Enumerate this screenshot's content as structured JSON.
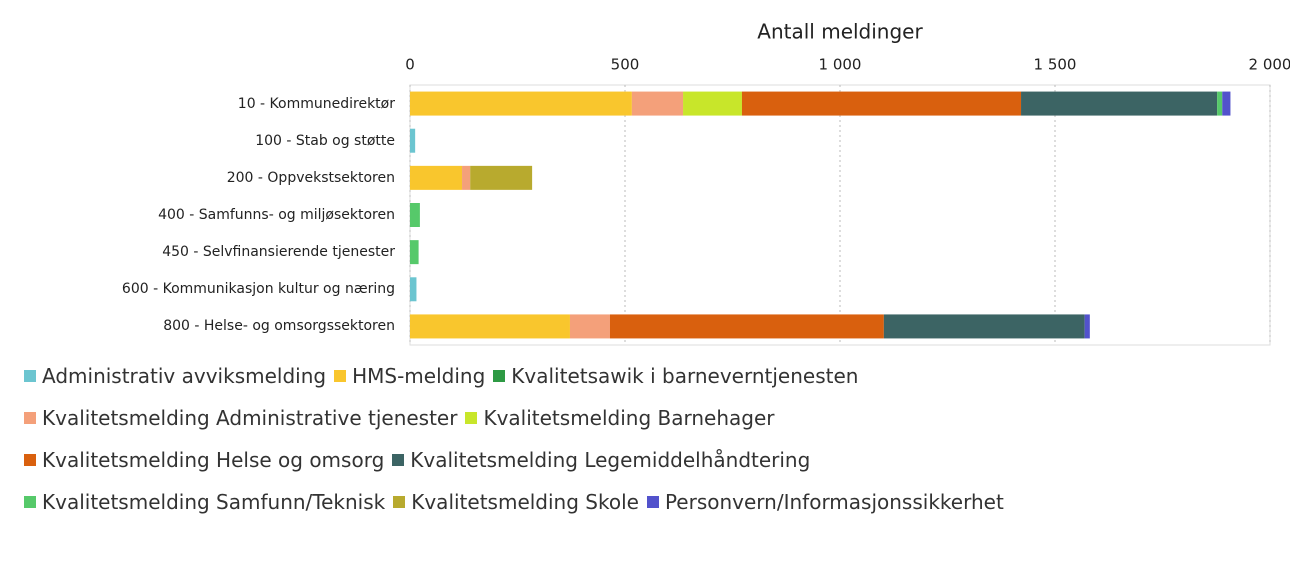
{
  "chart_data": {
    "type": "stacked-bar-horizontal",
    "xlabel": "Antall meldinger",
    "categories": [
      "10 - Kommunedirektør",
      "100 - Stab og støtte",
      "200 - Oppvekstsektoren",
      "400 - Samfunns- og miljøsektoren",
      "450 - Selvfinansierende tjenester",
      "600 - Kommunikasjon kultur og næring",
      "800 - Helse- og omsorgssektoren"
    ],
    "series": [
      {
        "name": "Administrativ avviksmelding",
        "color": "#6cc5d0",
        "values": [
          0,
          12,
          0,
          0,
          0,
          15,
          0
        ]
      },
      {
        "name": "HMS-melding",
        "color": "#f9c62d",
        "values": [
          516,
          0,
          121,
          0,
          0,
          0,
          372
        ]
      },
      {
        "name": "Kvalitetsawik i barneverntjenesten",
        "color": "#2e9a44",
        "values": [
          0,
          0,
          0,
          0,
          0,
          0,
          0
        ]
      },
      {
        "name": "Kvalitetsmelding Administrative tjenester",
        "color": "#f4a07a",
        "values": [
          119,
          0,
          19,
          0,
          0,
          0,
          93
        ]
      },
      {
        "name": "Kvalitetsmelding Barnehager",
        "color": "#c8e62a",
        "values": [
          137,
          0,
          0,
          0,
          0,
          0,
          0
        ]
      },
      {
        "name": "Kvalitetsmelding Helse og omsorg",
        "color": "#d9600e",
        "values": [
          649,
          0,
          0,
          0,
          0,
          0,
          637
        ]
      },
      {
        "name": "Kvalitetsmelding Legemiddelhåndtering",
        "color": "#3c6464",
        "values": [
          456,
          0,
          0,
          0,
          0,
          0,
          467
        ]
      },
      {
        "name": "Kvalitetsmelding Samfunn/Teknisk",
        "color": "#56c96a",
        "values": [
          12,
          0,
          0,
          23,
          20,
          0,
          0
        ]
      },
      {
        "name": "Kvalitetsmelding Skole",
        "color": "#b8aa2e",
        "values": [
          0,
          0,
          144,
          0,
          0,
          0,
          0
        ]
      },
      {
        "name": "Personvern/Informasjonssikkerhet",
        "color": "#5252cc",
        "values": [
          19,
          0,
          0,
          0,
          0,
          0,
          12
        ]
      }
    ],
    "xlim": [
      0,
      2000
    ],
    "xticks": [
      0,
      500,
      {
        "value": 1000,
        "label": "1 000"
      },
      {
        "value": 1500,
        "label": "1 500"
      },
      {
        "value": 2000,
        "label": "2 000"
      }
    ],
    "grid": true
  }
}
